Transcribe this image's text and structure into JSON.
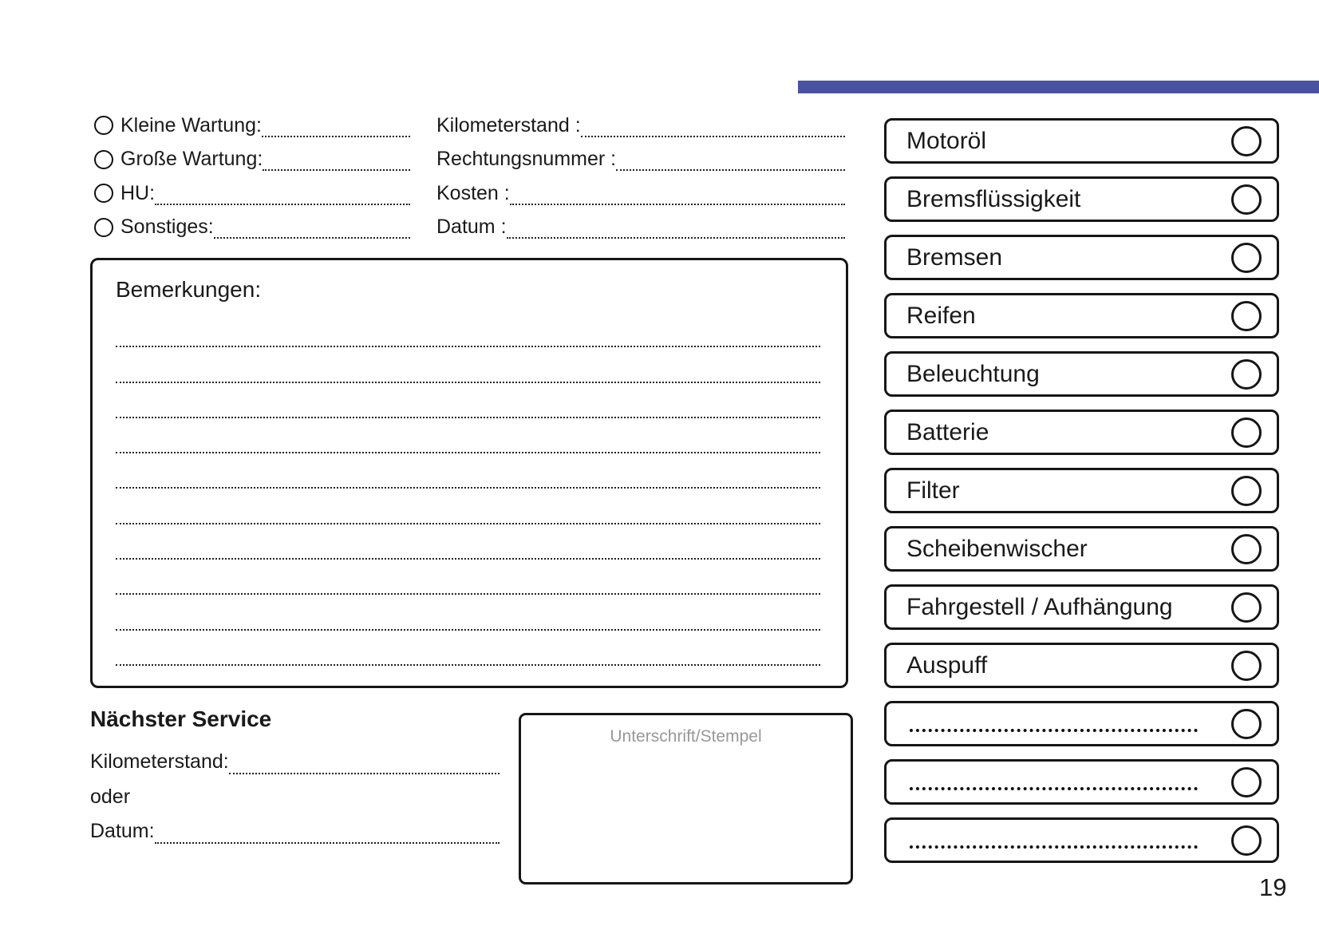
{
  "page": {
    "number": "19",
    "accent_color": "#4a52a2"
  },
  "service_type": {
    "items": [
      {
        "label": "Kleine Wartung:"
      },
      {
        "label": "Große Wartung:"
      },
      {
        "label": "HU:"
      },
      {
        "label": "Sonstiges:"
      }
    ]
  },
  "invoice_fields": {
    "items": [
      {
        "label": "Kilometerstand :"
      },
      {
        "label": "Rechtungsnummer :"
      },
      {
        "label": "Kosten :"
      },
      {
        "label": "Datum :"
      }
    ]
  },
  "remarks": {
    "title": "Bemerkungen:",
    "lines": [
      "",
      "",
      "",
      "",
      "",
      "",
      "",
      "",
      "",
      ""
    ]
  },
  "checklist": {
    "items": [
      {
        "label": "Motoröl"
      },
      {
        "label": "Bremsflüssigkeit"
      },
      {
        "label": "Bremsen"
      },
      {
        "label": "Reifen"
      },
      {
        "label": "Beleuchtung"
      },
      {
        "label": "Batterie"
      },
      {
        "label": "Filter"
      },
      {
        "label": "Scheibenwischer"
      },
      {
        "label": "Fahrgestell / Aufhängung"
      },
      {
        "label": "Auspuff"
      },
      {
        "label": "",
        "mod": "blank"
      },
      {
        "label": "",
        "mod": "blank"
      },
      {
        "label": "",
        "mod": "blank"
      }
    ]
  },
  "next_service": {
    "title": "Nächster Service",
    "rows": [
      {
        "label": "Kilometerstand:"
      },
      {
        "label": "oder",
        "mod": "no-leader"
      },
      {
        "label": "Datum:"
      }
    ]
  },
  "signature": {
    "placeholder": "Unterschrift/Stempel"
  }
}
